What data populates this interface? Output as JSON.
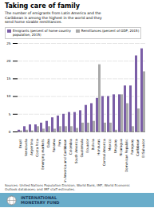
{
  "chart_data": {
    "type": "bar",
    "title": "Taking care of family",
    "subtitle": "The number of emigrants from Latin America and the\nCaribbean is among the highest in the world and they\nsend home sizable remittances.",
    "categories": [
      "Brazil",
      "Venezuela",
      "Argentina",
      "Costa Rica",
      "Emerging markets",
      "Cuba",
      "Panama",
      "Peru",
      "Latin America and Caribbean",
      "Colombia",
      "South America",
      "Guatemala",
      "Ecuador",
      "Bolivia",
      "Honduras",
      "Central America",
      "Mexico",
      "Uruguay",
      "Nicaragua",
      "Dominican Republic",
      "Paraguay",
      "Caribbean",
      "El Salvador"
    ],
    "series": [
      {
        "name": "Emigrants (percent of home country\npopulation, 2015)",
        "color": "#7b5ea7",
        "values": [
          0.5,
          1.5,
          2.0,
          2.0,
          2.5,
          3.0,
          4.0,
          4.5,
          5.0,
          5.5,
          5.5,
          6.0,
          7.5,
          8.0,
          9.5,
          10.0,
          10.0,
          10.5,
          10.5,
          13.0,
          13.0,
          21.5,
          23.5
        ]
      },
      {
        "name": "Remittances (percent of GDP, 2015)",
        "color": "#aaaaaa",
        "values": [
          0.3,
          0.5,
          0.3,
          1.5,
          0.8,
          1.5,
          0.8,
          1.5,
          1.5,
          1.5,
          1.0,
          2.5,
          2.5,
          3.0,
          19.0,
          2.5,
          2.5,
          0.5,
          10.5,
          8.0,
          1.5,
          6.5,
          17.0
        ]
      }
    ],
    "ylim": [
      0,
      25
    ],
    "yticks": [
      0,
      5,
      10,
      15,
      20,
      25
    ],
    "grid": true,
    "legend": "upper left",
    "source": "Sources: United Nations Population Division, World Bank, IMF, World Economic\nOutlook databases; and IMF staff estimates.",
    "annotations": [
      "INTERNATIONAL",
      "MONETARY FUND"
    ]
  }
}
